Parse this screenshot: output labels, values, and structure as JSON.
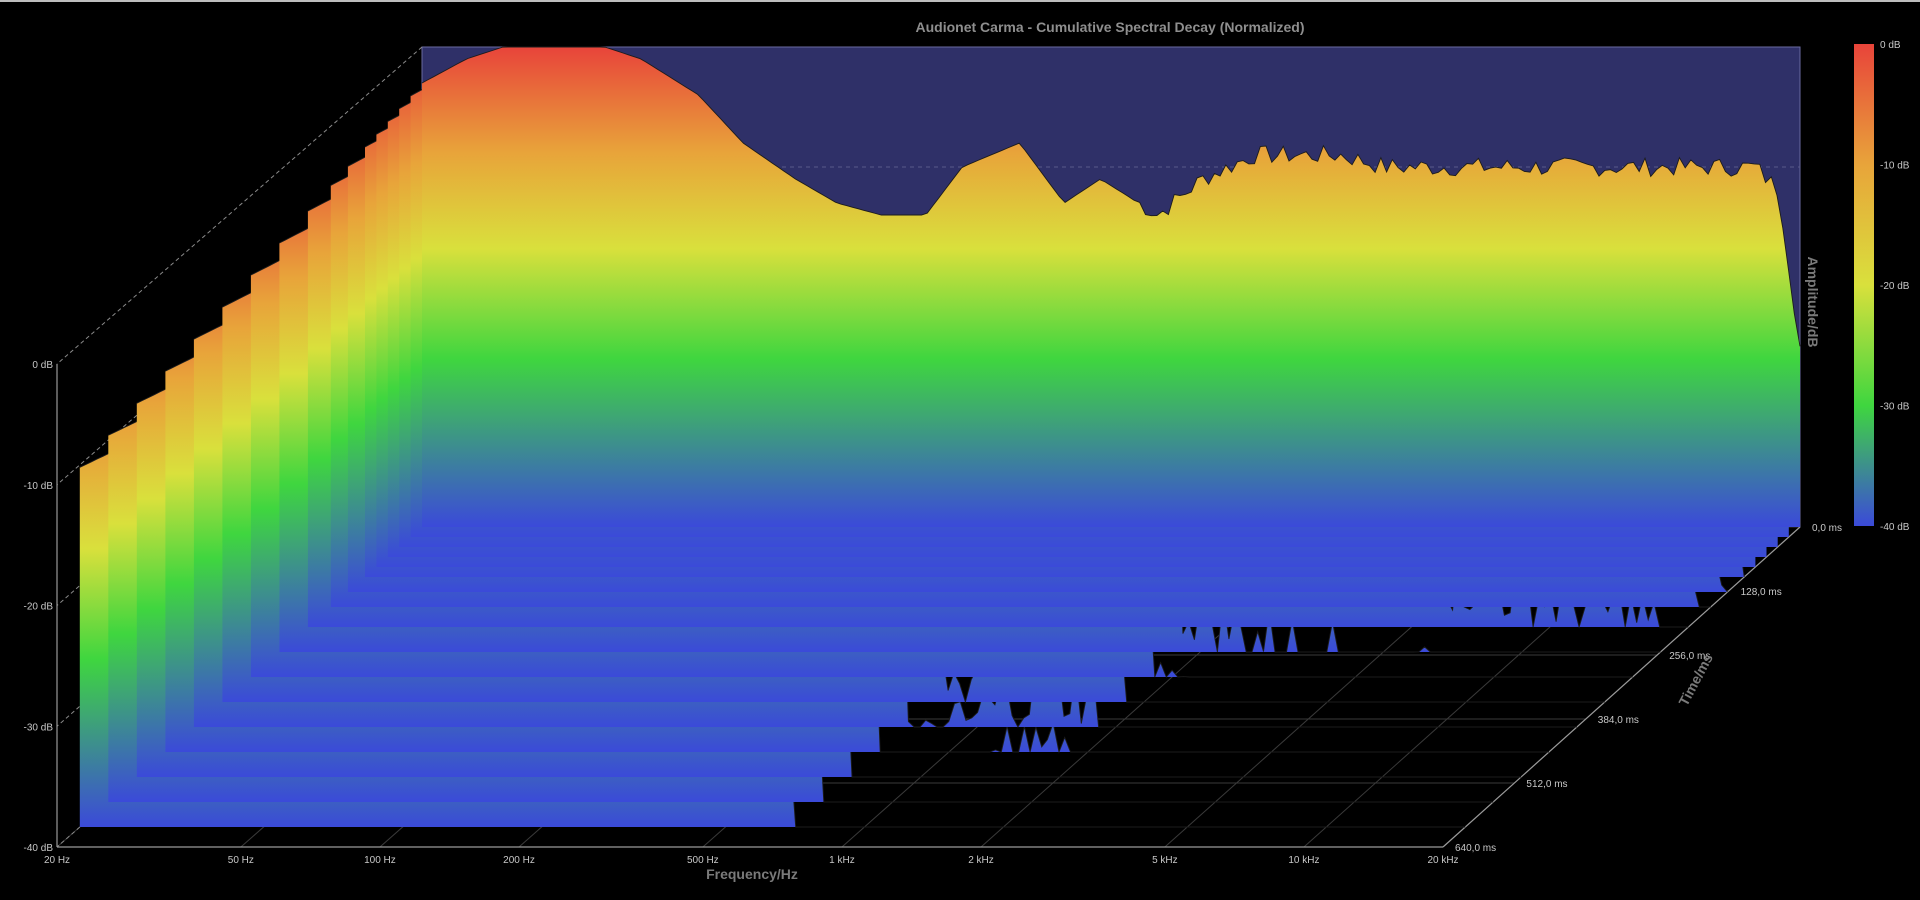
{
  "chart_data": {
    "type": "area",
    "subtype": "waterfall-3d",
    "title": "Audionet Carma - Cumulative Spectral Decay (Normalized)",
    "xlabel": "Frequency/Hz",
    "zlabel": "Time/ms",
    "colorbar_label": "Amplitude/dB",
    "x_scale": "log",
    "xlim_hz": [
      20,
      20000
    ],
    "x_ticks": [
      "20 Hz",
      "50 Hz",
      "100 Hz",
      "200 Hz",
      "500 Hz",
      "1 kHz",
      "2 kHz",
      "5 kHz",
      "10 kHz",
      "20 kHz"
    ],
    "x_tick_values_hz": [
      20,
      50,
      100,
      200,
      500,
      1000,
      2000,
      5000,
      10000,
      20000
    ],
    "y_ticks": [
      "0 dB",
      "-10 dB",
      "-20 dB",
      "-30 dB",
      "-40 dB"
    ],
    "y_tick_values_db": [
      0,
      -10,
      -20,
      -30,
      -40
    ],
    "ylim_db": [
      -40,
      0
    ],
    "z_ticks": [
      "0,0 ms",
      "128,0 ms",
      "256,0 ms",
      "384,0 ms",
      "512,0 ms",
      "640,0 ms"
    ],
    "z_tick_values_ms": [
      0,
      128,
      256,
      384,
      512,
      640
    ],
    "zlim_ms": [
      0,
      640
    ],
    "colorbar_ticks": [
      "0 dB",
      "-10 dB",
      "-20 dB",
      "-30 dB",
      "-40 dB"
    ],
    "colorbar_tick_values_db": [
      0,
      -10,
      -20,
      -30,
      -40
    ],
    "colorbar_colors": [
      "#e8443a",
      "#e8a43a",
      "#d9e03c",
      "#3fd63f",
      "#3b4ad9"
    ],
    "grid": true,
    "back_wall_color": "#2f3068",
    "slice_times_ms": [
      0,
      20,
      40,
      60,
      80,
      100,
      130,
      160,
      200,
      250,
      300,
      350,
      400,
      450,
      500,
      550,
      600
    ],
    "spectrum_freqs_hz": [
      20,
      25,
      30,
      40,
      50,
      60,
      80,
      100,
      130,
      160,
      200,
      250,
      300,
      400,
      500,
      600,
      800,
      1000,
      1300,
      1600,
      2000,
      2500,
      3000,
      4000,
      5000,
      6000,
      8000,
      10000,
      13000,
      16000,
      18000,
      20000
    ],
    "spectrum_at_0ms_db": [
      -3,
      -1,
      0,
      0,
      0,
      -1,
      -4,
      -8,
      -11,
      -13,
      -14,
      -14,
      -10,
      -8,
      -13,
      -11,
      -14,
      -11,
      -9,
      -9,
      -9,
      -10,
      -10,
      -10,
      -10,
      -10,
      -10,
      -10,
      -10,
      -10,
      -12,
      -25
    ],
    "series_note": ""
  }
}
